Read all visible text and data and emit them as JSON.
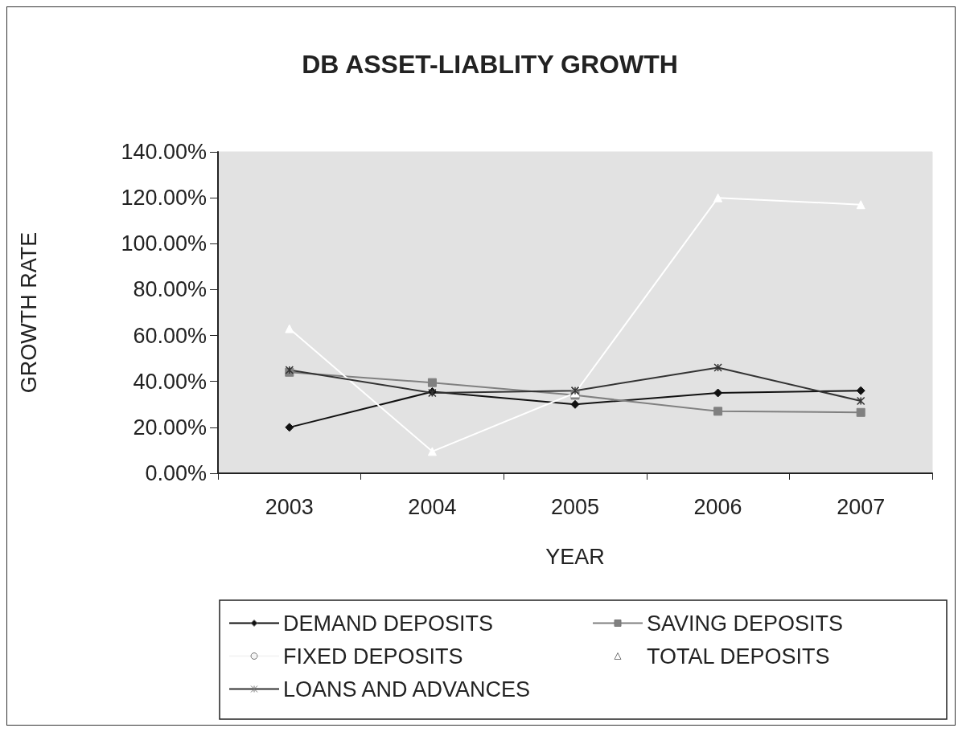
{
  "chart_data": {
    "type": "line",
    "title": "DB ASSET-LIABLITY GROWTH",
    "xlabel": "YEAR",
    "ylabel": "GROWTH RATE",
    "categories": [
      "2003",
      "2004",
      "2005",
      "2006",
      "2007"
    ],
    "series": [
      {
        "name": "DEMAND DEPOSITS",
        "color": "#111111",
        "marker": "diamond",
        "values": [
          20,
          35.5,
          30,
          35,
          36
        ]
      },
      {
        "name": "SAVING DEPOSITS",
        "color": "#808080",
        "marker": "square",
        "values": [
          44,
          39.5,
          34,
          27,
          26.5
        ]
      },
      {
        "name": "FIXED DEPOSITS",
        "color": "#f4f4f4",
        "marker": "none",
        "values": [
          null,
          null,
          null,
          null,
          null
        ]
      },
      {
        "name": "TOTAL DEPOSITS",
        "color": "#ffffff",
        "marker": "triangle",
        "values": [
          63,
          9.5,
          35,
          120,
          117
        ]
      },
      {
        "name": "LOANS AND ADVANCES",
        "color": "#333333",
        "marker": "cross",
        "values": [
          45,
          35,
          36,
          46,
          31.5
        ]
      }
    ],
    "ylim": [
      0,
      140
    ],
    "yticks": [
      {
        "value": 0,
        "label": "0.00%"
      },
      {
        "value": 20,
        "label": "20.00%"
      },
      {
        "value": 40,
        "label": "40.00%"
      },
      {
        "value": 60,
        "label": "60.00%"
      },
      {
        "value": 80,
        "label": "80.00%"
      },
      {
        "value": 100,
        "label": "100.00%"
      },
      {
        "value": 120,
        "label": "120.00%"
      },
      {
        "value": 140,
        "label": "140.00%"
      }
    ],
    "grid": false,
    "legend": "bottom"
  }
}
